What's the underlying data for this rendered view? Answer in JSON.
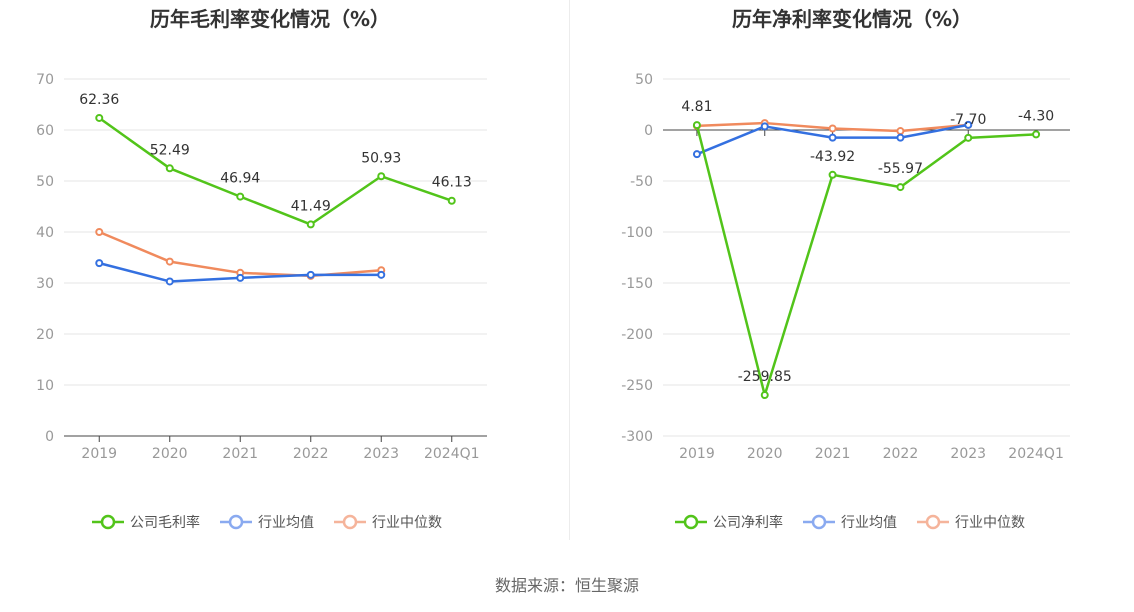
{
  "chart_data": [
    {
      "type": "line",
      "title": "历年毛利率变化情况（%）",
      "categories": [
        "2019",
        "2020",
        "2021",
        "2022",
        "2023",
        "2024Q1"
      ],
      "y_ticks": [
        "70",
        "60",
        "50",
        "40",
        "30",
        "20",
        "10",
        "0"
      ],
      "ylim": [
        0,
        70
      ],
      "series": [
        {
          "name": "公司毛利率",
          "color": "#52c41a",
          "values": [
            62.36,
            52.49,
            46.94,
            41.49,
            50.93,
            46.13
          ],
          "labels": [
            "62.36",
            "52.49",
            "46.94",
            "41.49",
            "50.93",
            "46.13"
          ]
        },
        {
          "name": "行业均值",
          "color": "#3470e0",
          "values": [
            33.9,
            30.3,
            31.0,
            31.6,
            31.6,
            null
          ],
          "labels": []
        },
        {
          "name": "行业中位数",
          "color": "#f08a5d",
          "values": [
            40.0,
            34.2,
            32.0,
            31.4,
            32.5,
            null
          ],
          "labels": []
        }
      ],
      "legend_position": "bottom"
    },
    {
      "type": "line",
      "title": "历年净利率变化情况（%）",
      "categories": [
        "2019",
        "2020",
        "2021",
        "2022",
        "2023",
        "2024Q1"
      ],
      "y_ticks": [
        "50",
        "0",
        "-50",
        "-100",
        "-150",
        "-200",
        "-250",
        "-300"
      ],
      "ylim": [
        -300,
        50
      ],
      "series": [
        {
          "name": "公司净利率",
          "color": "#52c41a",
          "values": [
            4.81,
            -259.85,
            -43.92,
            -55.97,
            -7.7,
            -4.3
          ],
          "labels": [
            "4.81",
            "-259.85",
            "-43.92",
            "-55.97",
            "-7.70",
            "-4.30"
          ]
        },
        {
          "name": "行业均值",
          "color": "#3470e0",
          "values": [
            -23.7,
            3.5,
            -7.5,
            -7.5,
            5.0,
            null
          ],
          "labels": []
        },
        {
          "name": "行业中位数",
          "color": "#f08a5d",
          "values": [
            4.0,
            6.8,
            1.5,
            -1.0,
            5.0,
            null
          ],
          "labels": []
        }
      ],
      "legend_position": "bottom"
    }
  ],
  "footer": {
    "source": "数据来源：恒生聚源"
  }
}
